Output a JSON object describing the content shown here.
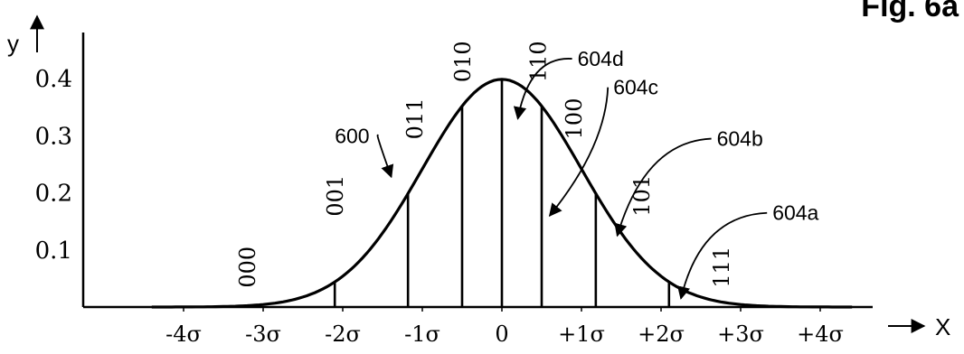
{
  "figure_label": "Fig. 6a",
  "chart_data": {
    "type": "line",
    "title": "",
    "xlabel": "X",
    "ylabel": "y",
    "distribution": "standard normal density",
    "xlim": [
      -4.8,
      4.8
    ],
    "ylim": [
      0,
      0.45
    ],
    "x_ticks": [
      {
        "value": -4,
        "label": "-4σ"
      },
      {
        "value": -3,
        "label": "-3σ"
      },
      {
        "value": -2,
        "label": "-2σ"
      },
      {
        "value": -1,
        "label": "-1σ"
      },
      {
        "value": 0,
        "label": "0"
      },
      {
        "value": 1,
        "label": "+1σ"
      },
      {
        "value": 2,
        "label": "+2σ"
      },
      {
        "value": 3,
        "label": "+3σ"
      },
      {
        "value": 4,
        "label": "+4σ"
      }
    ],
    "y_ticks": [
      {
        "value": 0.1,
        "label": "0.1"
      },
      {
        "value": 0.2,
        "label": "0.2"
      },
      {
        "value": 0.3,
        "label": "0.3"
      },
      {
        "value": 0.4,
        "label": "0.4"
      }
    ],
    "boundaries": [
      -2.1,
      -1.18,
      -0.5,
      0,
      0.5,
      1.18,
      2.1
    ],
    "region_codes": [
      {
        "code": "000",
        "x": -3.1,
        "y": 0.07
      },
      {
        "code": "001",
        "x": -2.0,
        "y": 0.195
      },
      {
        "code": "011",
        "x": -1.0,
        "y": 0.33
      },
      {
        "code": "010",
        "x": -0.4,
        "y": 0.43
      },
      {
        "code": "110",
        "x": 0.55,
        "y": 0.43
      },
      {
        "code": "100",
        "x": 1.0,
        "y": 0.33
      },
      {
        "code": "101",
        "x": 1.85,
        "y": 0.195
      },
      {
        "code": "111",
        "x": 2.85,
        "y": 0.07
      }
    ],
    "annotations": [
      {
        "text": "600",
        "text_x": -2.1,
        "text_y": 0.3,
        "tip_x": -1.39,
        "tip_y": 0.228,
        "ctrl_x": -1.6,
        "ctrl_y": 0.31
      },
      {
        "text": "604d",
        "text_x": 0.95,
        "text_y": 0.435,
        "tip_x": 0.2,
        "tip_y": 0.33,
        "ctrl_x": 0.35,
        "ctrl_y": 0.44
      },
      {
        "text": "604c",
        "text_x": 1.4,
        "text_y": 0.385,
        "tip_x": 0.6,
        "tip_y": 0.16,
        "ctrl_x": 1.3,
        "ctrl_y": 0.28
      },
      {
        "text": "604b",
        "text_x": 2.7,
        "text_y": 0.295,
        "tip_x": 1.45,
        "tip_y": 0.125,
        "ctrl_x": 1.8,
        "ctrl_y": 0.29
      },
      {
        "text": "604a",
        "text_x": 3.4,
        "text_y": 0.165,
        "tip_x": 2.25,
        "tip_y": 0.015,
        "ctrl_x": 2.5,
        "ctrl_y": 0.16
      }
    ]
  }
}
